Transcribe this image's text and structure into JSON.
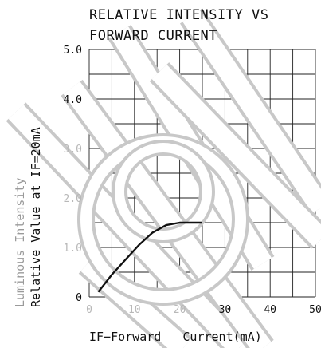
{
  "chart_data": {
    "type": "line",
    "title_line1": "RELATIVE INTENSITY VS",
    "title_line2": "FORWARD CURRENT",
    "xlabel": "IF−Forward   Current(mA)",
    "ylabel_line1": "Luminous Intensity",
    "ylabel_line2": "Relative  Value  at  IF=20mA",
    "xlim": [
      0,
      50
    ],
    "ylim": [
      0,
      5.0
    ],
    "x_ticks": [
      "0",
      "10",
      "20",
      "30",
      "40",
      "50"
    ],
    "y_ticks": [
      "0",
      "1.0",
      "2.0",
      "3.0",
      "4.0",
      "5.0"
    ],
    "grid": true,
    "series": [
      {
        "x": [
          2,
          5,
          8,
          11,
          14,
          17,
          20,
          23,
          25
        ],
        "y": [
          0.1,
          0.45,
          0.75,
          1.05,
          1.3,
          1.45,
          1.5,
          1.5,
          1.5
        ]
      }
    ],
    "line_color": "#111111",
    "watermark_color": "#c8c8c8"
  }
}
